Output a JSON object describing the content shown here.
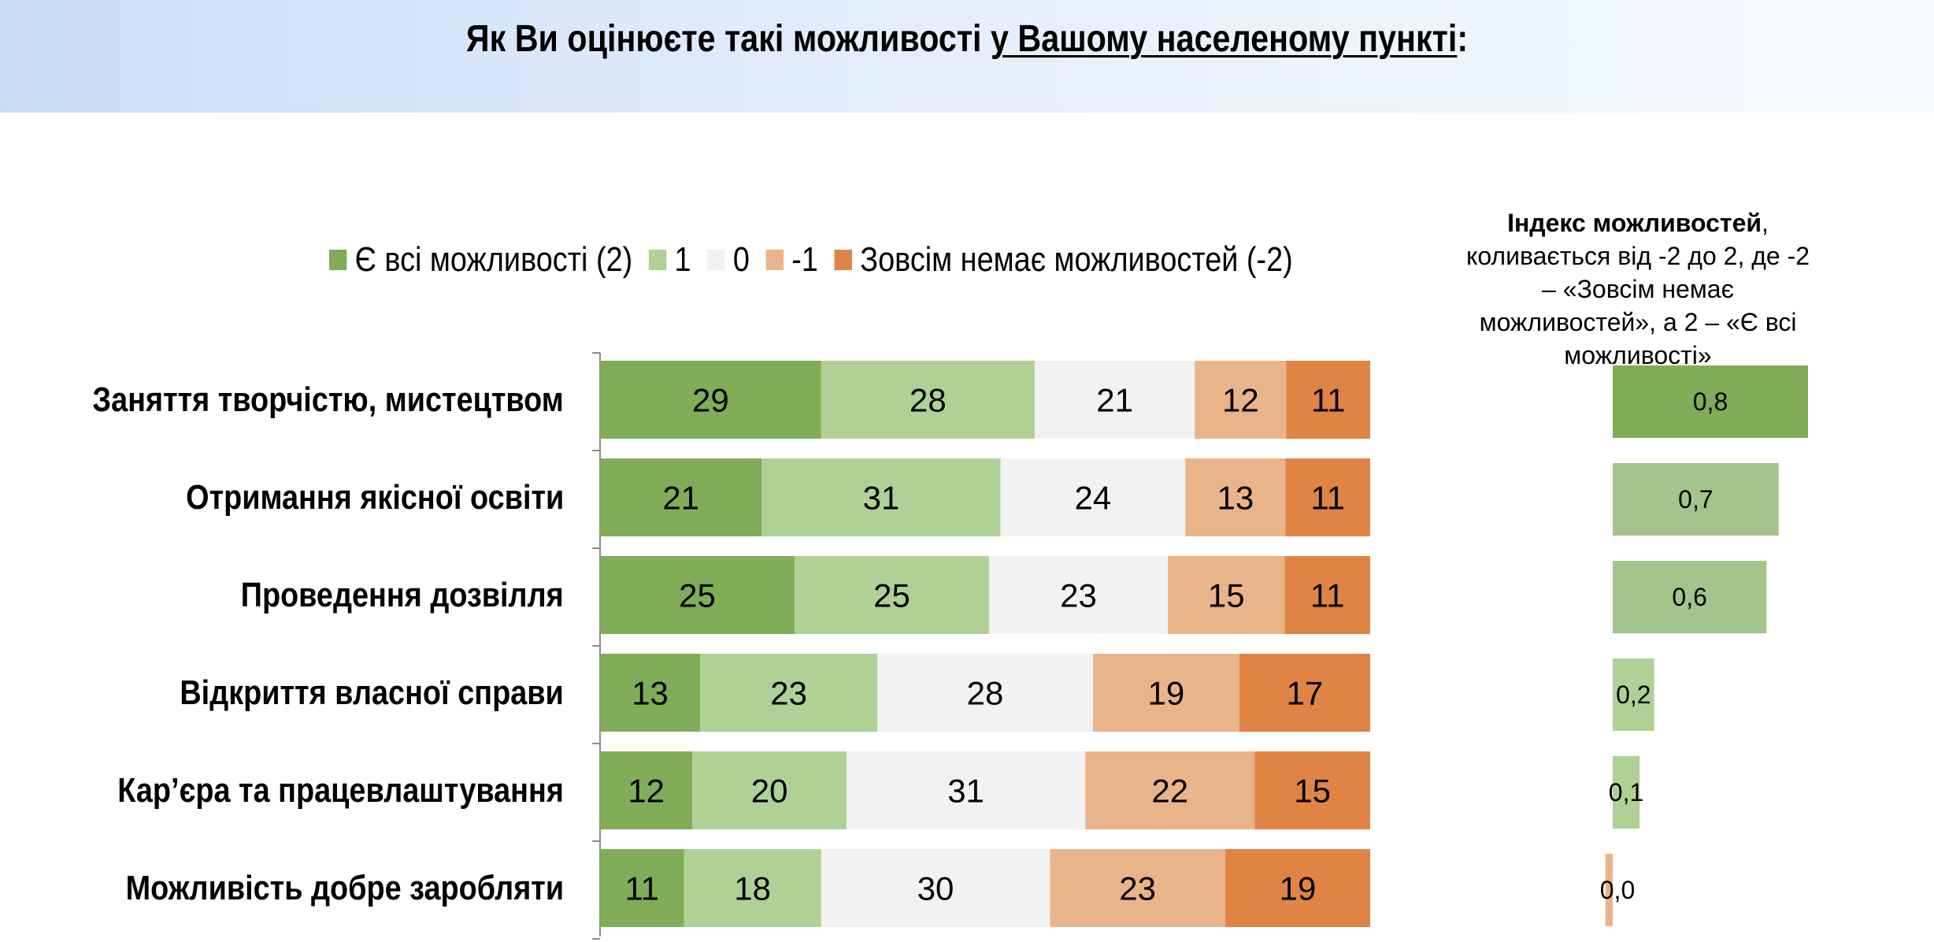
{
  "title": {
    "text_before": "Як Ви оцінюєте такі можливості ",
    "text_underlined": "у Вашому населеному пункті",
    "text_after": ":"
  },
  "chart_data": {
    "type": "bar",
    "orientation": "horizontal-stacked-percent",
    "categories": [
      "Заняття творчістю, мистецтвом",
      "Отримання якісної освіти",
      "Проведення дозвілля",
      "Відкриття власної справи",
      "Кар’єра та працевлаштування",
      "Можливість добре заробляти"
    ],
    "series": [
      {
        "name": "Є всі можливості (2)",
        "color": "#7fad58",
        "values": [
          29,
          21,
          25,
          13,
          12,
          11
        ]
      },
      {
        "name": "1",
        "color": "#b0d196",
        "values": [
          28,
          31,
          25,
          23,
          20,
          18
        ]
      },
      {
        "name": "0",
        "color": "#f2f2f2",
        "values": [
          21,
          24,
          23,
          28,
          31,
          30
        ]
      },
      {
        "name": "-1",
        "color": "#eab48a",
        "values": [
          12,
          13,
          15,
          19,
          22,
          23
        ]
      },
      {
        "name": "Зовсім немає можливостей (-2)",
        "color": "#e08446",
        "values": [
          11,
          11,
          11,
          17,
          15,
          19
        ]
      }
    ],
    "legend_position": "top",
    "index_chart": {
      "title_bold": "Індекс можливостей",
      "title_rest": ", коливається від -2 до 2, де -2 – «Зовсім немає можливостей», а 2 – «Є всі можливості»",
      "labels": [
        "0,8",
        "0,7",
        "0,6",
        "0,2",
        "0,1",
        "0,0"
      ],
      "values": [
        0.8,
        0.68,
        0.63,
        0.17,
        0.11,
        -0.03
      ],
      "colors": [
        "#7fad58",
        "#a3c48a",
        "#a3c48a",
        "#b0d196",
        "#b0d196",
        "#eab48a"
      ]
    }
  }
}
